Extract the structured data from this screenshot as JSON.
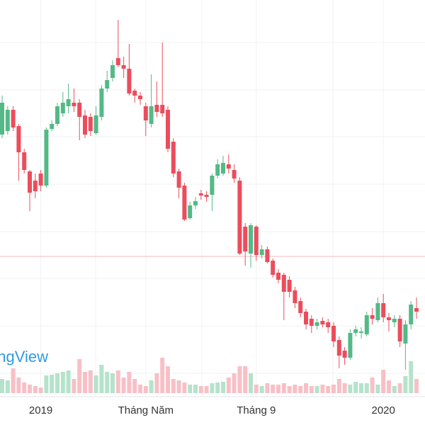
{
  "chart_data": {
    "type": "candlestick",
    "watermark": "TradingView",
    "categories": [
      null,
      null,
      null,
      null,
      null,
      null,
      null,
      "2019",
      null,
      null,
      null,
      null,
      null,
      null,
      null,
      null,
      null,
      null,
      null,
      null,
      null,
      null,
      null,
      null,
      null,
      null,
      "Tháng Năm",
      null,
      null,
      null,
      null,
      null,
      null,
      null,
      null,
      null,
      null,
      null,
      null,
      null,
      null,
      null,
      null,
      null,
      null,
      null,
      "Tháng 9",
      null,
      null,
      null,
      null,
      null,
      null,
      null,
      null,
      null,
      null,
      null,
      null,
      null,
      null,
      null,
      null,
      null,
      null,
      null,
      null,
      null,
      null,
      "2020",
      null,
      null,
      null,
      null,
      null,
      null
    ],
    "open": [
      410,
      415,
      445,
      422,
      385,
      358,
      345,
      355,
      338,
      418,
      425,
      440,
      450,
      455,
      455,
      437,
      435,
      412,
      435,
      475,
      490,
      518,
      508,
      503,
      472,
      465,
      450,
      425,
      452,
      452,
      445,
      400,
      358,
      338,
      292,
      310,
      327,
      325,
      325,
      352,
      355,
      368,
      360,
      345,
      280,
      242,
      280,
      240,
      248,
      232,
      215,
      212,
      205,
      190,
      175,
      160,
      150,
      140,
      147,
      145,
      140,
      120,
      105,
      95,
      130,
      130,
      128,
      155,
      148,
      172,
      152,
      145,
      150,
      115,
      142,
      165
    ],
    "high": [
      465,
      450,
      450,
      425,
      390,
      360,
      355,
      360,
      420,
      430,
      455,
      470,
      482,
      475,
      460,
      445,
      440,
      450,
      480,
      500,
      515,
      572,
      520,
      538,
      475,
      470,
      455,
      495,
      485,
      540,
      450,
      405,
      362,
      342,
      315,
      322,
      332,
      330,
      355,
      375,
      380,
      382,
      368,
      350,
      285,
      285,
      282,
      254,
      252,
      235,
      220,
      215,
      210,
      195,
      180,
      164,
      155,
      150,
      152,
      150,
      145,
      125,
      110,
      135,
      140,
      138,
      160,
      165,
      180,
      185,
      158,
      155,
      155,
      148,
      175,
      180
    ],
    "low": [
      405,
      410,
      415,
      345,
      355,
      302,
      320,
      330,
      335,
      415,
      422,
      435,
      440,
      442,
      402,
      405,
      408,
      410,
      430,
      470,
      485,
      505,
      490,
      465,
      455,
      452,
      408,
      420,
      435,
      435,
      385,
      350,
      320,
      288,
      290,
      305,
      318,
      315,
      302,
      348,
      352,
      355,
      342,
      240,
      225,
      222,
      232,
      235,
      228,
      208,
      200,
      148,
      180,
      165,
      152,
      135,
      130,
      135,
      138,
      130,
      110,
      80,
      85,
      92,
      125,
      122,
      125,
      142,
      145,
      145,
      132,
      138,
      110,
      78,
      135,
      150
    ],
    "close": [
      455,
      445,
      420,
      385,
      360,
      328,
      330,
      338,
      417,
      425,
      450,
      455,
      460,
      450,
      435,
      410,
      415,
      437,
      475,
      487,
      508,
      508,
      503,
      468,
      465,
      460,
      430,
      450,
      442,
      440,
      390,
      355,
      335,
      290,
      310,
      316,
      324,
      322,
      352,
      368,
      370,
      362,
      348,
      242,
      245,
      282,
      240,
      248,
      230,
      212,
      205,
      188,
      188,
      172,
      158,
      142,
      140,
      145,
      142,
      138,
      118,
      98,
      95,
      130,
      135,
      132,
      155,
      150,
      172,
      152,
      148,
      150,
      118,
      142,
      170,
      160
    ],
    "volumes": [
      20,
      18,
      35,
      22,
      15,
      12,
      10,
      8,
      25,
      26,
      28,
      30,
      32,
      20,
      48,
      30,
      32,
      25,
      40,
      30,
      28,
      32,
      22,
      30,
      20,
      12,
      10,
      18,
      28,
      50,
      38,
      20,
      18,
      15,
      12,
      12,
      10,
      10,
      14,
      15,
      16,
      22,
      28,
      38,
      38,
      28,
      12,
      10,
      14,
      12,
      12,
      14,
      10,
      12,
      10,
      14,
      10,
      10,
      12,
      10,
      12,
      20,
      14,
      12,
      16,
      14,
      14,
      22,
      12,
      33,
      18,
      10,
      14,
      24,
      45,
      20
    ],
    "ylim": [
      0,
      600
    ],
    "volume_lim": [
      0,
      100
    ],
    "price_line": 238,
    "price_line_color": "#f5b8c0",
    "up_color": "#53b987",
    "down_color": "#eb4d5c",
    "up_volume_color": "#b5e2cb",
    "down_volume_color": "#f7c0c6",
    "watermark_color": "#2e9be0"
  }
}
